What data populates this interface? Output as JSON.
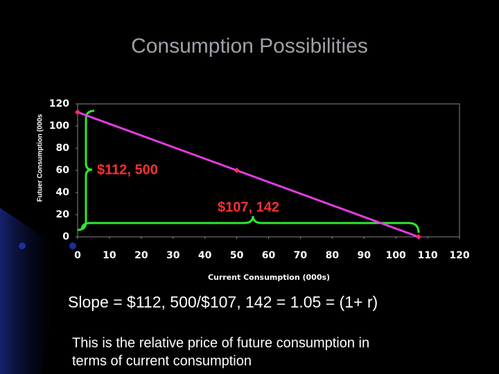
{
  "slide": {
    "title": "Consumption Possibilities",
    "equation": "Slope = $112, 500/$107, 142 = 1.05 = (1+ r)",
    "note": [
      "This is the relative price of future consumption in",
      "terms of current consumption"
    ]
  },
  "chart_data": {
    "type": "line",
    "x_label": "Current Consumption (000s)",
    "y_label": "Futuer Consumption (000s",
    "x": [
      0,
      50,
      107.142
    ],
    "series": [
      {
        "values": [
          112.5,
          60,
          0
        ],
        "color": "#e43ce4",
        "marker_color": "#ff2a6a"
      }
    ],
    "xlim": [
      0,
      120
    ],
    "xticks": [
      0,
      10,
      20,
      30,
      40,
      50,
      60,
      70,
      80,
      90,
      100,
      110,
      120
    ],
    "ylim": [
      0,
      120
    ],
    "yticks": [
      0,
      20,
      40,
      60,
      80,
      100,
      120
    ],
    "annotations": [
      {
        "text": "$112, 500"
      },
      {
        "text": "$107, 142"
      }
    ]
  }
}
